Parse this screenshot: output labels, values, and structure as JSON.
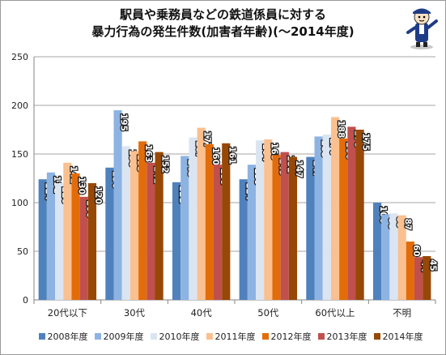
{
  "chart_data": {
    "type": "bar",
    "title_line1": "駅員や乗務員などの鉄道係員に対する",
    "title_line2": "暴力行為の発生件数(加害者年齢)(〜2014年度)",
    "categories": [
      "20代以下",
      "30代",
      "40代",
      "50代",
      "60代以上",
      "不明"
    ],
    "series": [
      {
        "name": "2008年度",
        "color": "#4f81bd",
        "values": [
          124,
          136,
          121,
          124,
          147,
          100
        ]
      },
      {
        "name": "2009年度",
        "color": "#8db3e2",
        "values": [
          131,
          195,
          148,
          139,
          168,
          88
        ]
      },
      {
        "name": "2010年度",
        "color": "#dbe5f1",
        "values": [
          120,
          158,
          167,
          164,
          170,
          89
        ]
      },
      {
        "name": "2011年度",
        "color": "#fac090",
        "values": [
          141,
          153,
          177,
          165,
          188,
          87
        ]
      },
      {
        "name": "2012年度",
        "color": "#e36c0a",
        "values": [
          130,
          163,
          160,
          149,
          166,
          60
        ]
      },
      {
        "name": "2013年度",
        "color": "#c0504d",
        "values": [
          106,
          141,
          139,
          152,
          178,
          44
        ]
      },
      {
        "name": "2014年度",
        "color": "#974806",
        "values": [
          120,
          152,
          161,
          147,
          175,
          45
        ]
      }
    ],
    "ylim": [
      0,
      250
    ],
    "yticks": [
      0,
      50,
      100,
      150,
      200,
      250
    ],
    "grid": true,
    "legend_position": "bottom"
  }
}
